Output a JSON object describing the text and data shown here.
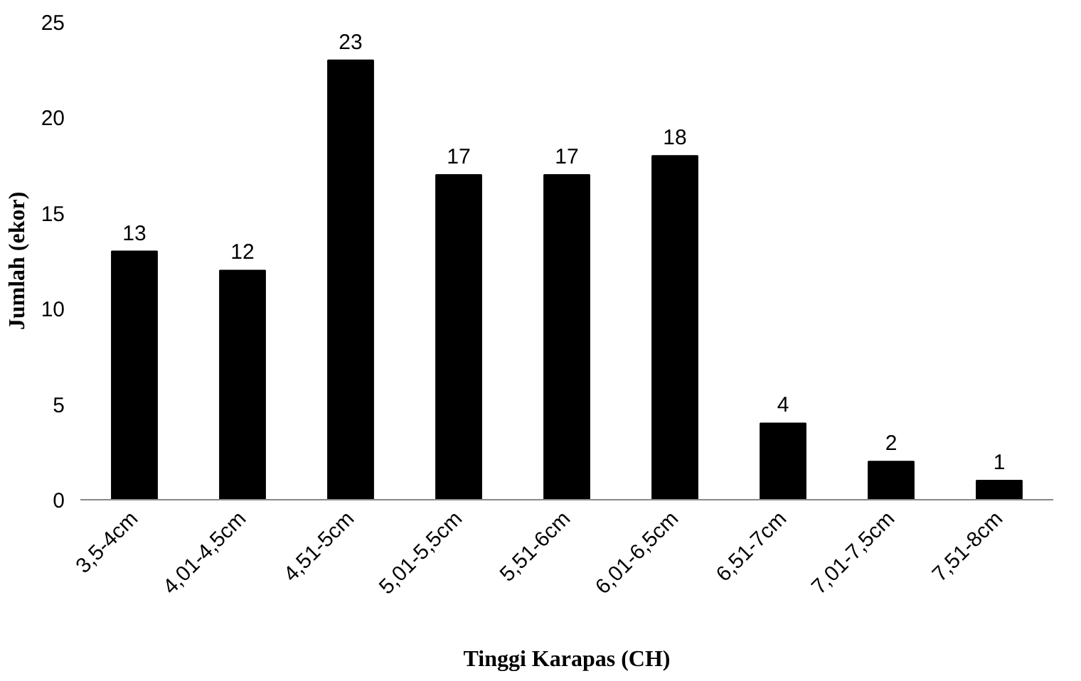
{
  "chart_data": {
    "type": "bar",
    "xlabel": "Tinggi Karapas (CH)",
    "ylabel": "Jumlah (ekor)",
    "categories": [
      "3,5-4cm",
      "4,01-4,5cm",
      "4,51-5cm",
      "5,01-5,5cm",
      "5,51-6cm",
      "6,01-6,5cm",
      "6,51-7cm",
      "7,01-7,5cm",
      "7,51-8cm"
    ],
    "values": [
      13,
      12,
      23,
      17,
      17,
      18,
      4,
      2,
      1
    ],
    "color": "#000000",
    "ylim": [
      0,
      25
    ],
    "yticks": [
      0,
      5,
      10,
      15,
      20,
      25
    ],
    "grid": false,
    "data_labels": true
  }
}
